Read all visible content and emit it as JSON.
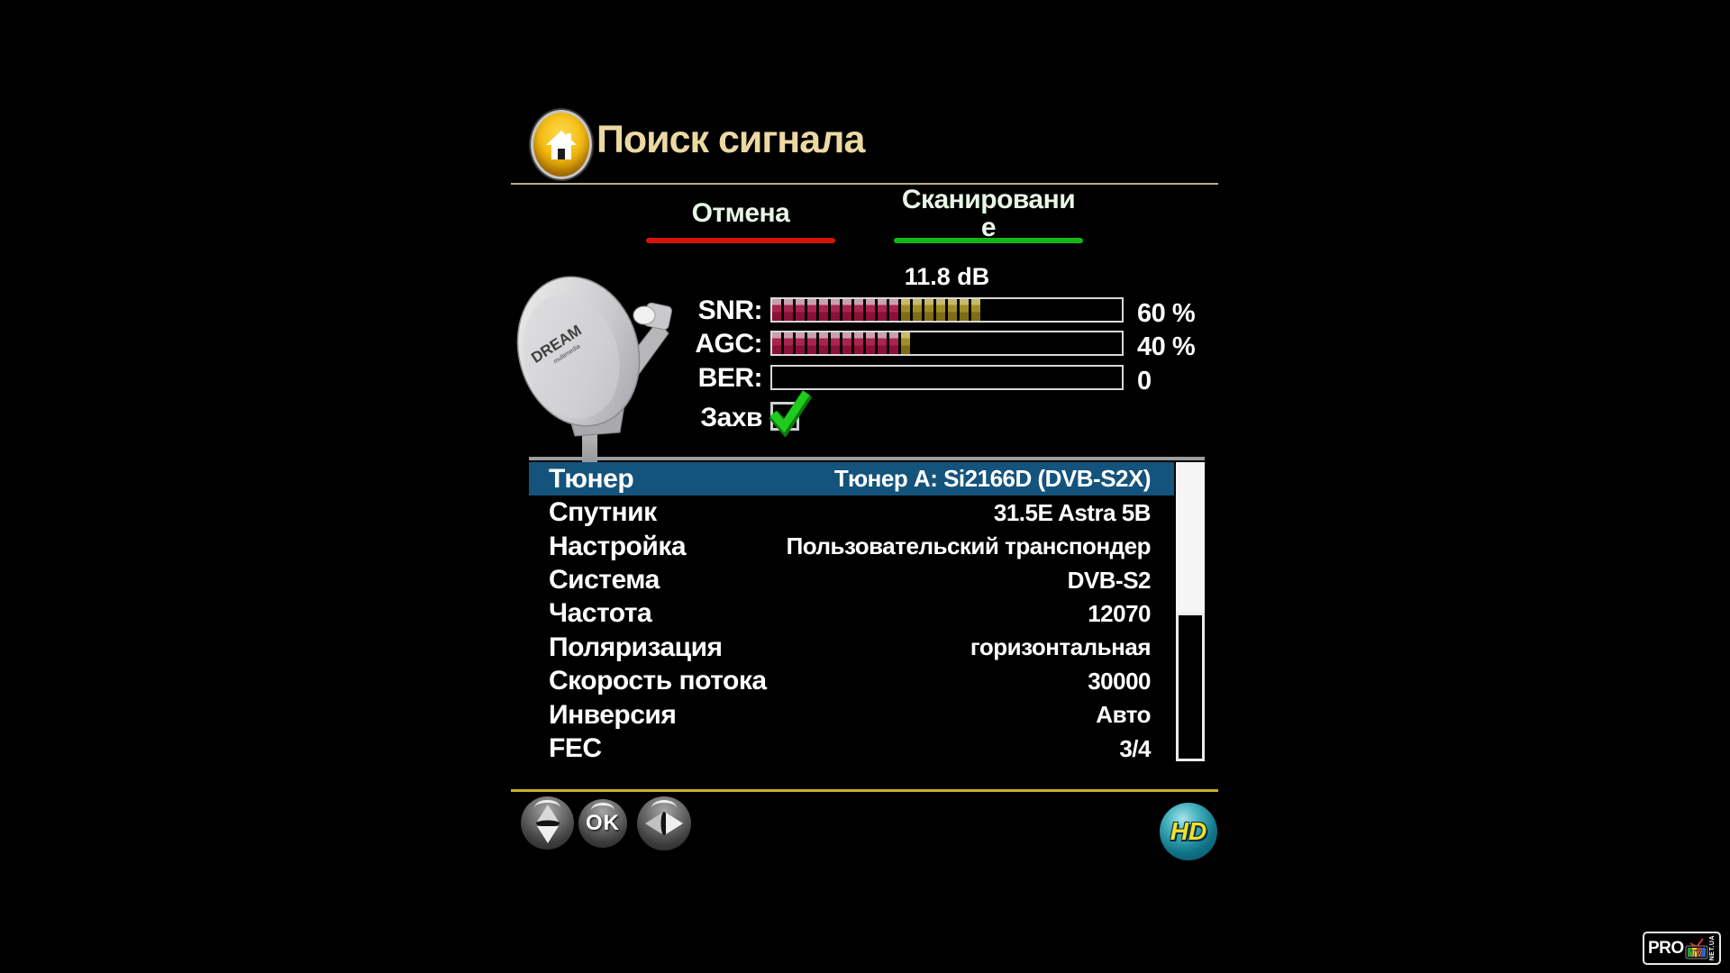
{
  "window": {
    "background": "#000000"
  },
  "header": {
    "icon": "home-icon",
    "title": "Поиск сигнала",
    "title_color": "#ecd9a2"
  },
  "action_bar": {
    "cancel_label": "Отмена",
    "cancel_color": "#d61500",
    "scan_label": "Сканирование",
    "scan_color": "#16b516"
  },
  "signal_panel": {
    "db_value": "11.8 dB",
    "meters": [
      {
        "label": "SNR:",
        "percent": 60,
        "value_text": "60 %"
      },
      {
        "label": "AGC:",
        "percent": 40,
        "value_text": "40 %"
      },
      {
        "label": "BER:",
        "percent": 0,
        "value_text": "0"
      }
    ],
    "lock": {
      "label": "Захв",
      "checked": true
    },
    "bar_colors": {
      "filled_low": "#aa2450",
      "filled_high": "#a18d27",
      "border": "#d8d8d8",
      "check_green": "#1ecb1e"
    },
    "dish_brand": "DREAM"
  },
  "tuning_table": {
    "selected_color": "#14537b",
    "rows": [
      {
        "label": "Тюнер",
        "value": "Тюнер A: Si2166D (DVB-S2X)",
        "selected": true
      },
      {
        "label": "Спутник",
        "value": "31.5E Astra 5B"
      },
      {
        "label": "Настройка",
        "value": "Пользовательский транспондер"
      },
      {
        "label": "Система",
        "value": "DVB-S2"
      },
      {
        "label": "Частота",
        "value": "12070"
      },
      {
        "label": "Поляризация",
        "value": "горизонтальная"
      },
      {
        "label": "Скорость потока",
        "value": "30000"
      },
      {
        "label": "Инверсия",
        "value": "Авто"
      },
      {
        "label": "FEC",
        "value": "3/4"
      }
    ]
  },
  "footer": {
    "ok_label": "OK",
    "hd_label": "HD"
  },
  "watermark": {
    "pro": "PRO",
    "tv": "TV",
    "net": "NET.UA"
  }
}
